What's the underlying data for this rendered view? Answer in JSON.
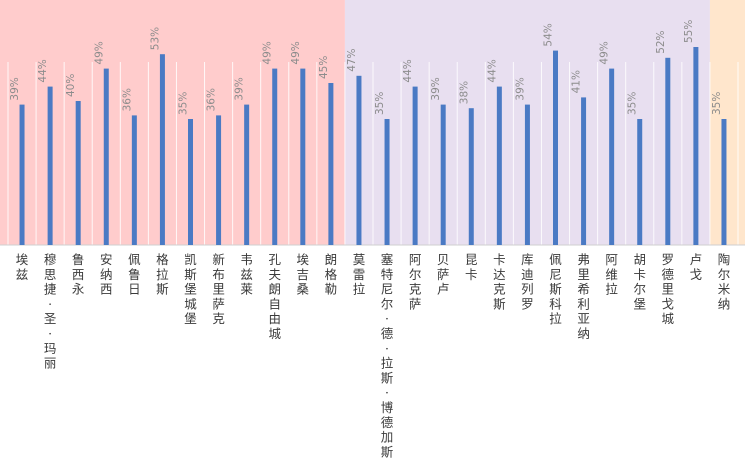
{
  "chart_data": {
    "type": "bar",
    "title": "",
    "xlabel": "",
    "ylabel": "",
    "ylim": [
      0,
      60
    ],
    "grid": "vertical",
    "value_suffix": "%",
    "categories": [
      "埃兹",
      "穆思捷·圣·玛丽",
      "鲁西永",
      "安纳西",
      "佩鲁日",
      "格拉斯",
      "凯斯堡城堡",
      "新布里萨克",
      "韦兹莱",
      "孔夫朗自由城",
      "埃吉桑",
      "朗格勒",
      "莫雷拉",
      "塞特尼尔·德·拉斯·博德加斯",
      "阿尔克萨",
      "贝萨卢",
      "昆卡",
      "卡达克斯",
      "库迪列罗",
      "佩尼斯科拉",
      "弗里希利亚纳",
      "阿维拉",
      "胡卡尔堡",
      "罗德里戈城",
      "卢戈",
      "陶尔米纳"
    ],
    "values": [
      39,
      44,
      40,
      49,
      36,
      53,
      35,
      36,
      39,
      49,
      49,
      45,
      47,
      35,
      44,
      39,
      38,
      44,
      39,
      54,
      41,
      49,
      35,
      52,
      55,
      35
    ],
    "groups": [
      {
        "start": 0,
        "end": 11,
        "color": "#ffcccc"
      },
      {
        "start": 12,
        "end": 24,
        "color": "#e8dff0"
      },
      {
        "start": 25,
        "end": 25,
        "color": "#ffe6cc"
      }
    ],
    "bar_color": "#4a7ac4"
  }
}
